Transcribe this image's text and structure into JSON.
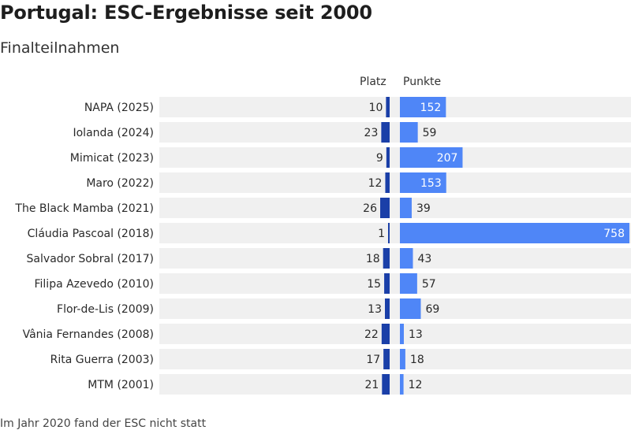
{
  "title": "Portugal: ESC-Ergebnisse seit 2000",
  "subtitle": "Finalteilnahmen",
  "columns": {
    "place": "Platz",
    "points": "Punkte"
  },
  "footer": "Im Jahr 2020 fand der ESC nicht statt",
  "colors": {
    "row_background": "#f0f0f0",
    "place_bar": "#1a3fa8",
    "points_bar": "#4f86f7",
    "text": "#2a2a2a"
  },
  "chart_data": {
    "type": "bar",
    "categories": [
      "NAPA (2025)",
      "Iolanda (2024)",
      "Mimicat (2023)",
      "Maro (2022)",
      "The Black Mamba (2021)",
      "Cláudia Pascoal (2018)",
      "Salvador Sobral (2017)",
      "Filipa Azevedo (2010)",
      "Flor-de-Lis (2009)",
      "Vânia Fernandes (2008)",
      "Rita Guerra (2003)",
      "MTM (2001)"
    ],
    "series": [
      {
        "name": "Platz",
        "values": [
          10,
          23,
          9,
          12,
          26,
          1,
          18,
          15,
          13,
          22,
          17,
          21
        ]
      },
      {
        "name": "Punkte",
        "values": [
          152,
          59,
          207,
          153,
          39,
          758,
          43,
          57,
          69,
          13,
          18,
          12
        ]
      }
    ],
    "place_max": 26,
    "points_max": 758
  }
}
